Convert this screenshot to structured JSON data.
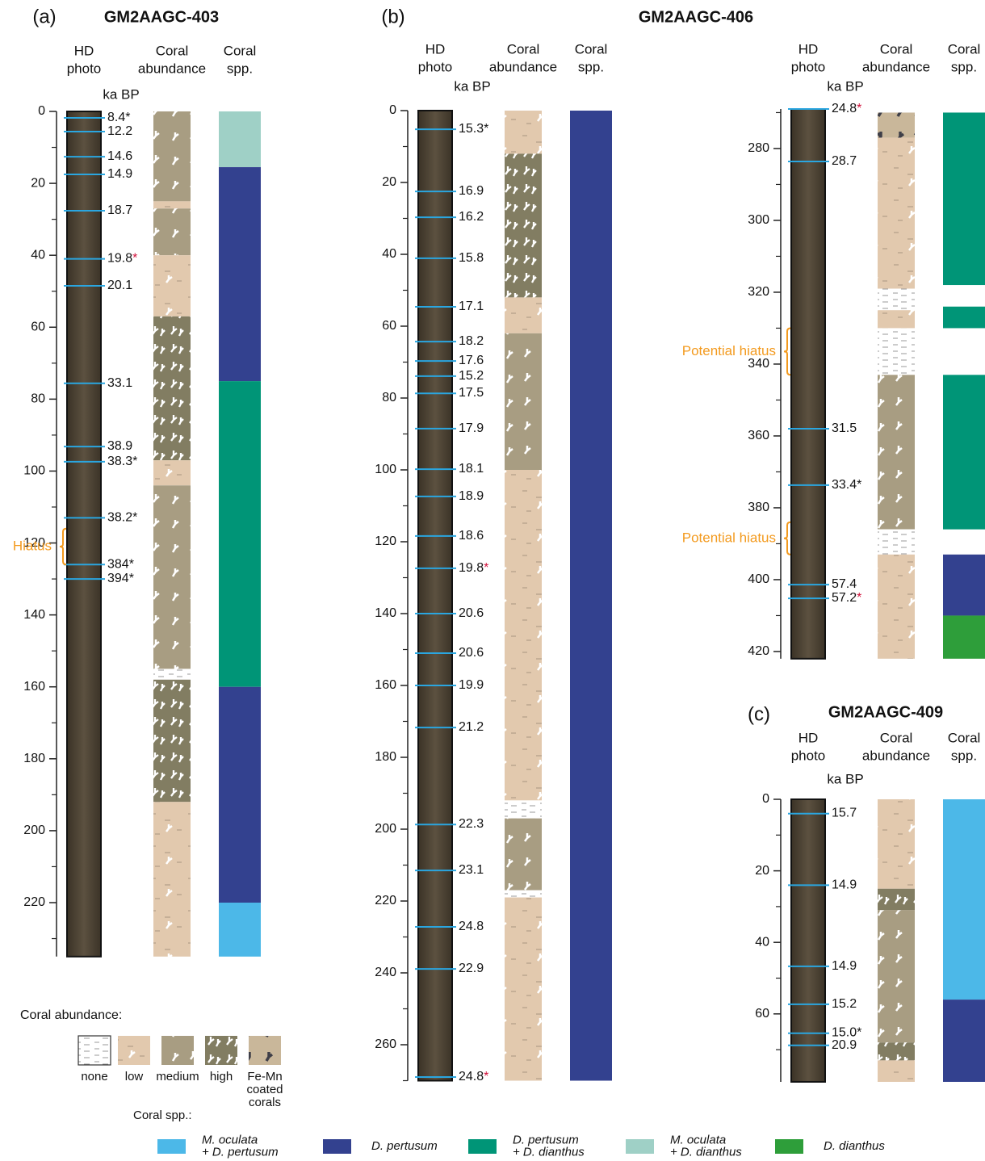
{
  "headers": {
    "photo": [
      "HD",
      "photo"
    ],
    "abundance": [
      "Coral",
      "abundance"
    ],
    "species": [
      "Coral",
      "spp."
    ],
    "age_unit": "ka BP"
  },
  "cores": [
    {
      "label": "(a)",
      "title": "GM2AAGC-403",
      "segments": [
        {
          "ylim": [
            0,
            235
          ],
          "yticks": [
            0,
            20,
            40,
            60,
            80,
            100,
            120,
            140,
            160,
            180,
            200,
            220
          ],
          "minor_yticks": [
            10,
            30,
            50,
            70,
            90,
            110,
            130,
            150,
            170,
            190,
            210,
            230
          ],
          "dates": [
            {
              "depth": 1.8,
              "age": "8.4",
              "note": "*"
            },
            {
              "depth": 5.6,
              "age": "12.2"
            },
            {
              "depth": 12.6,
              "age": "14.6"
            },
            {
              "depth": 17.5,
              "age": "14.9"
            },
            {
              "depth": 27.6,
              "age": "18.7"
            },
            {
              "depth": 41,
              "age": "19.8",
              "note": "*",
              "note_color": "#d0103a"
            },
            {
              "depth": 48.5,
              "age": "20.1"
            },
            {
              "depth": 75.6,
              "age": "33.1"
            },
            {
              "depth": 93.2,
              "age": "38.9"
            },
            {
              "depth": 97.4,
              "age": "38.3",
              "note": "*"
            },
            {
              "depth": 113,
              "age": "38.2",
              "note": "*"
            },
            {
              "depth": 126,
              "age": "384",
              "note": "*"
            },
            {
              "depth": 130,
              "age": "394",
              "note": "*"
            }
          ],
          "abundance": [
            {
              "from": 0,
              "to": 25,
              "class": 2
            },
            {
              "from": 25,
              "to": 27,
              "class": 1
            },
            {
              "from": 27,
              "to": 40,
              "class": 2
            },
            {
              "from": 40,
              "to": 57,
              "class": 1
            },
            {
              "from": 57,
              "to": 97,
              "class": 3
            },
            {
              "from": 97,
              "to": 104,
              "class": 1
            },
            {
              "from": 104,
              "to": 155,
              "class": 2
            },
            {
              "from": 155,
              "to": 158,
              "class": 0
            },
            {
              "from": 158,
              "to": 192,
              "class": 3
            },
            {
              "from": 192,
              "to": 235,
              "class": 1
            }
          ],
          "species": [
            {
              "from": 0,
              "to": 15.5,
              "species": 3
            },
            {
              "from": 15.5,
              "to": 75,
              "species": 1
            },
            {
              "from": 75,
              "to": 160,
              "species": 2
            },
            {
              "from": 160,
              "to": 220,
              "species": 1
            },
            {
              "from": 220,
              "to": 235,
              "species": 0
            }
          ],
          "hiatus": [
            {
              "from": 116,
              "to": 126,
              "label": "Hiatus"
            }
          ]
        }
      ]
    },
    {
      "label": "(b)",
      "title": "GM2AAGC-406",
      "segments": [
        {
          "ylim": [
            0,
            270
          ],
          "yticks": [
            0,
            20,
            40,
            60,
            80,
            100,
            120,
            140,
            160,
            180,
            200,
            220,
            240,
            260
          ],
          "minor_yticks": [
            10,
            30,
            50,
            70,
            90,
            110,
            130,
            150,
            170,
            190,
            210,
            230,
            250,
            270
          ],
          "dates": [
            {
              "depth": 5.2,
              "age": "15.3",
              "note": "*"
            },
            {
              "depth": 22.5,
              "age": "16.9"
            },
            {
              "depth": 29.7,
              "age": "16.2"
            },
            {
              "depth": 41.1,
              "age": "15.8"
            },
            {
              "depth": 54.6,
              "age": "17.1"
            },
            {
              "depth": 64.3,
              "age": "18.2"
            },
            {
              "depth": 69.7,
              "age": "17.6"
            },
            {
              "depth": 73.9,
              "age": "15.2"
            },
            {
              "depth": 78.7,
              "age": "17.5"
            },
            {
              "depth": 88.5,
              "age": "17.9"
            },
            {
              "depth": 99.8,
              "age": "18.1"
            },
            {
              "depth": 107.4,
              "age": "18.9"
            },
            {
              "depth": 118.4,
              "age": "18.6"
            },
            {
              "depth": 127.4,
              "age": "19.8",
              "note": "*",
              "note_color": "#d0103a"
            },
            {
              "depth": 140,
              "age": "20.6"
            },
            {
              "depth": 151,
              "age": "20.6"
            },
            {
              "depth": 160,
              "age": "19.9"
            },
            {
              "depth": 171.7,
              "age": "21.2"
            },
            {
              "depth": 198.7,
              "age": "22.3"
            },
            {
              "depth": 211.5,
              "age": "23.1"
            },
            {
              "depth": 227.2,
              "age": "24.8"
            },
            {
              "depth": 238.9,
              "age": "22.9"
            },
            {
              "depth": 269,
              "age": "24.8",
              "note": "*",
              "note_color": "#d0103a"
            }
          ],
          "abundance": [
            {
              "from": 0,
              "to": 12,
              "class": 1
            },
            {
              "from": 12,
              "to": 52,
              "class": 3
            },
            {
              "from": 52,
              "to": 62,
              "class": 1
            },
            {
              "from": 62,
              "to": 100,
              "class": 2
            },
            {
              "from": 100,
              "to": 192,
              "class": 1
            },
            {
              "from": 192,
              "to": 197,
              "class": 0
            },
            {
              "from": 197,
              "to": 217,
              "class": 2
            },
            {
              "from": 217,
              "to": 219,
              "class": 0
            },
            {
              "from": 219,
              "to": 270,
              "class": 1
            }
          ],
          "species": [
            {
              "from": 0,
              "to": 270,
              "species": 1
            }
          ],
          "hiatus": []
        },
        {
          "ylim": [
            269,
            422
          ],
          "yticks": [
            280,
            300,
            320,
            340,
            360,
            380,
            400,
            420
          ],
          "minor_yticks": [
            270,
            290,
            310,
            330,
            350,
            370,
            390,
            410
          ],
          "dates": [
            {
              "depth": 269,
              "age": "24.8",
              "note": "*",
              "note_color": "#d0103a"
            },
            {
              "depth": 283.6,
              "age": "28.7"
            },
            {
              "depth": 358,
              "age": "31.5"
            },
            {
              "depth": 373.7,
              "age": "33.4",
              "note": "*"
            },
            {
              "depth": 401.4,
              "age": "57.4"
            },
            {
              "depth": 405.2,
              "age": "57.2",
              "note": "*",
              "note_color": "#d0103a"
            }
          ],
          "abundance": [
            {
              "from": 270,
              "to": 277,
              "class": 4
            },
            {
              "from": 277,
              "to": 319,
              "class": 1
            },
            {
              "from": 319,
              "to": 325,
              "class": 0
            },
            {
              "from": 325,
              "to": 330,
              "class": 1
            },
            {
              "from": 330,
              "to": 343,
              "class": 0
            },
            {
              "from": 343,
              "to": 386,
              "class": 2
            },
            {
              "from": 386,
              "to": 393,
              "class": 0
            },
            {
              "from": 393,
              "to": 422,
              "class": 1
            }
          ],
          "species": [
            {
              "from": 270,
              "to": 318,
              "species": 2
            },
            {
              "from": 324,
              "to": 330,
              "species": 2
            },
            {
              "from": 343,
              "to": 386,
              "species": 2
            },
            {
              "from": 393,
              "to": 410,
              "species": 1
            },
            {
              "from": 410,
              "to": 422,
              "species": 4
            }
          ],
          "hiatus": [
            {
              "from": 330,
              "to": 343,
              "label": "Potential hiatus"
            },
            {
              "from": 384,
              "to": 393,
              "label": "Potential hiatus"
            }
          ]
        }
      ]
    },
    {
      "label": "(c)",
      "title": "GM2AAGC-409",
      "segments": [
        {
          "ylim": [
            0,
            79
          ],
          "yticks": [
            0,
            20,
            40,
            60
          ],
          "minor_yticks": [
            10,
            30,
            50,
            70
          ],
          "dates": [
            {
              "depth": 4,
              "age": "15.7"
            },
            {
              "depth": 24,
              "age": "14.9"
            },
            {
              "depth": 46.7,
              "age": "14.9"
            },
            {
              "depth": 57.3,
              "age": "15.2"
            },
            {
              "depth": 65.4,
              "age": "15.0",
              "note": "*"
            },
            {
              "depth": 68.8,
              "age": "20.9"
            }
          ],
          "abundance": [
            {
              "from": 0,
              "to": 25,
              "class": 1
            },
            {
              "from": 25,
              "to": 31,
              "class": 3
            },
            {
              "from": 31,
              "to": 68,
              "class": 2
            },
            {
              "from": 68,
              "to": 73,
              "class": 3
            },
            {
              "from": 73,
              "to": 79,
              "class": 1
            }
          ],
          "species": [
            {
              "from": 0,
              "to": 56,
              "species": 0
            },
            {
              "from": 56,
              "to": 79,
              "species": 1
            }
          ],
          "hiatus": []
        }
      ]
    }
  ],
  "legend": {
    "abundance_title": "Coral abundance:",
    "abundance_classes": [
      [
        "none"
      ],
      [
        "low"
      ],
      [
        "medium"
      ],
      [
        "high"
      ],
      [
        "Fe-Mn",
        "coated",
        "corals"
      ]
    ],
    "species_title": "Coral spp.:",
    "species": [
      {
        "name": [
          "M. oculata",
          "+ D. pertusum"
        ],
        "color": "#4cb8e8"
      },
      {
        "name": [
          "D. pertusum"
        ],
        "color": "#33418f"
      },
      {
        "name": [
          "D. pertusum",
          "+ D. dianthus"
        ],
        "color": "#009577"
      },
      {
        "name": [
          "M. oculata",
          "+ D. dianthus"
        ],
        "color": "#9fd0c6"
      },
      {
        "name": [
          "D. dianthus"
        ],
        "color": "#2e9e3a"
      }
    ]
  }
}
